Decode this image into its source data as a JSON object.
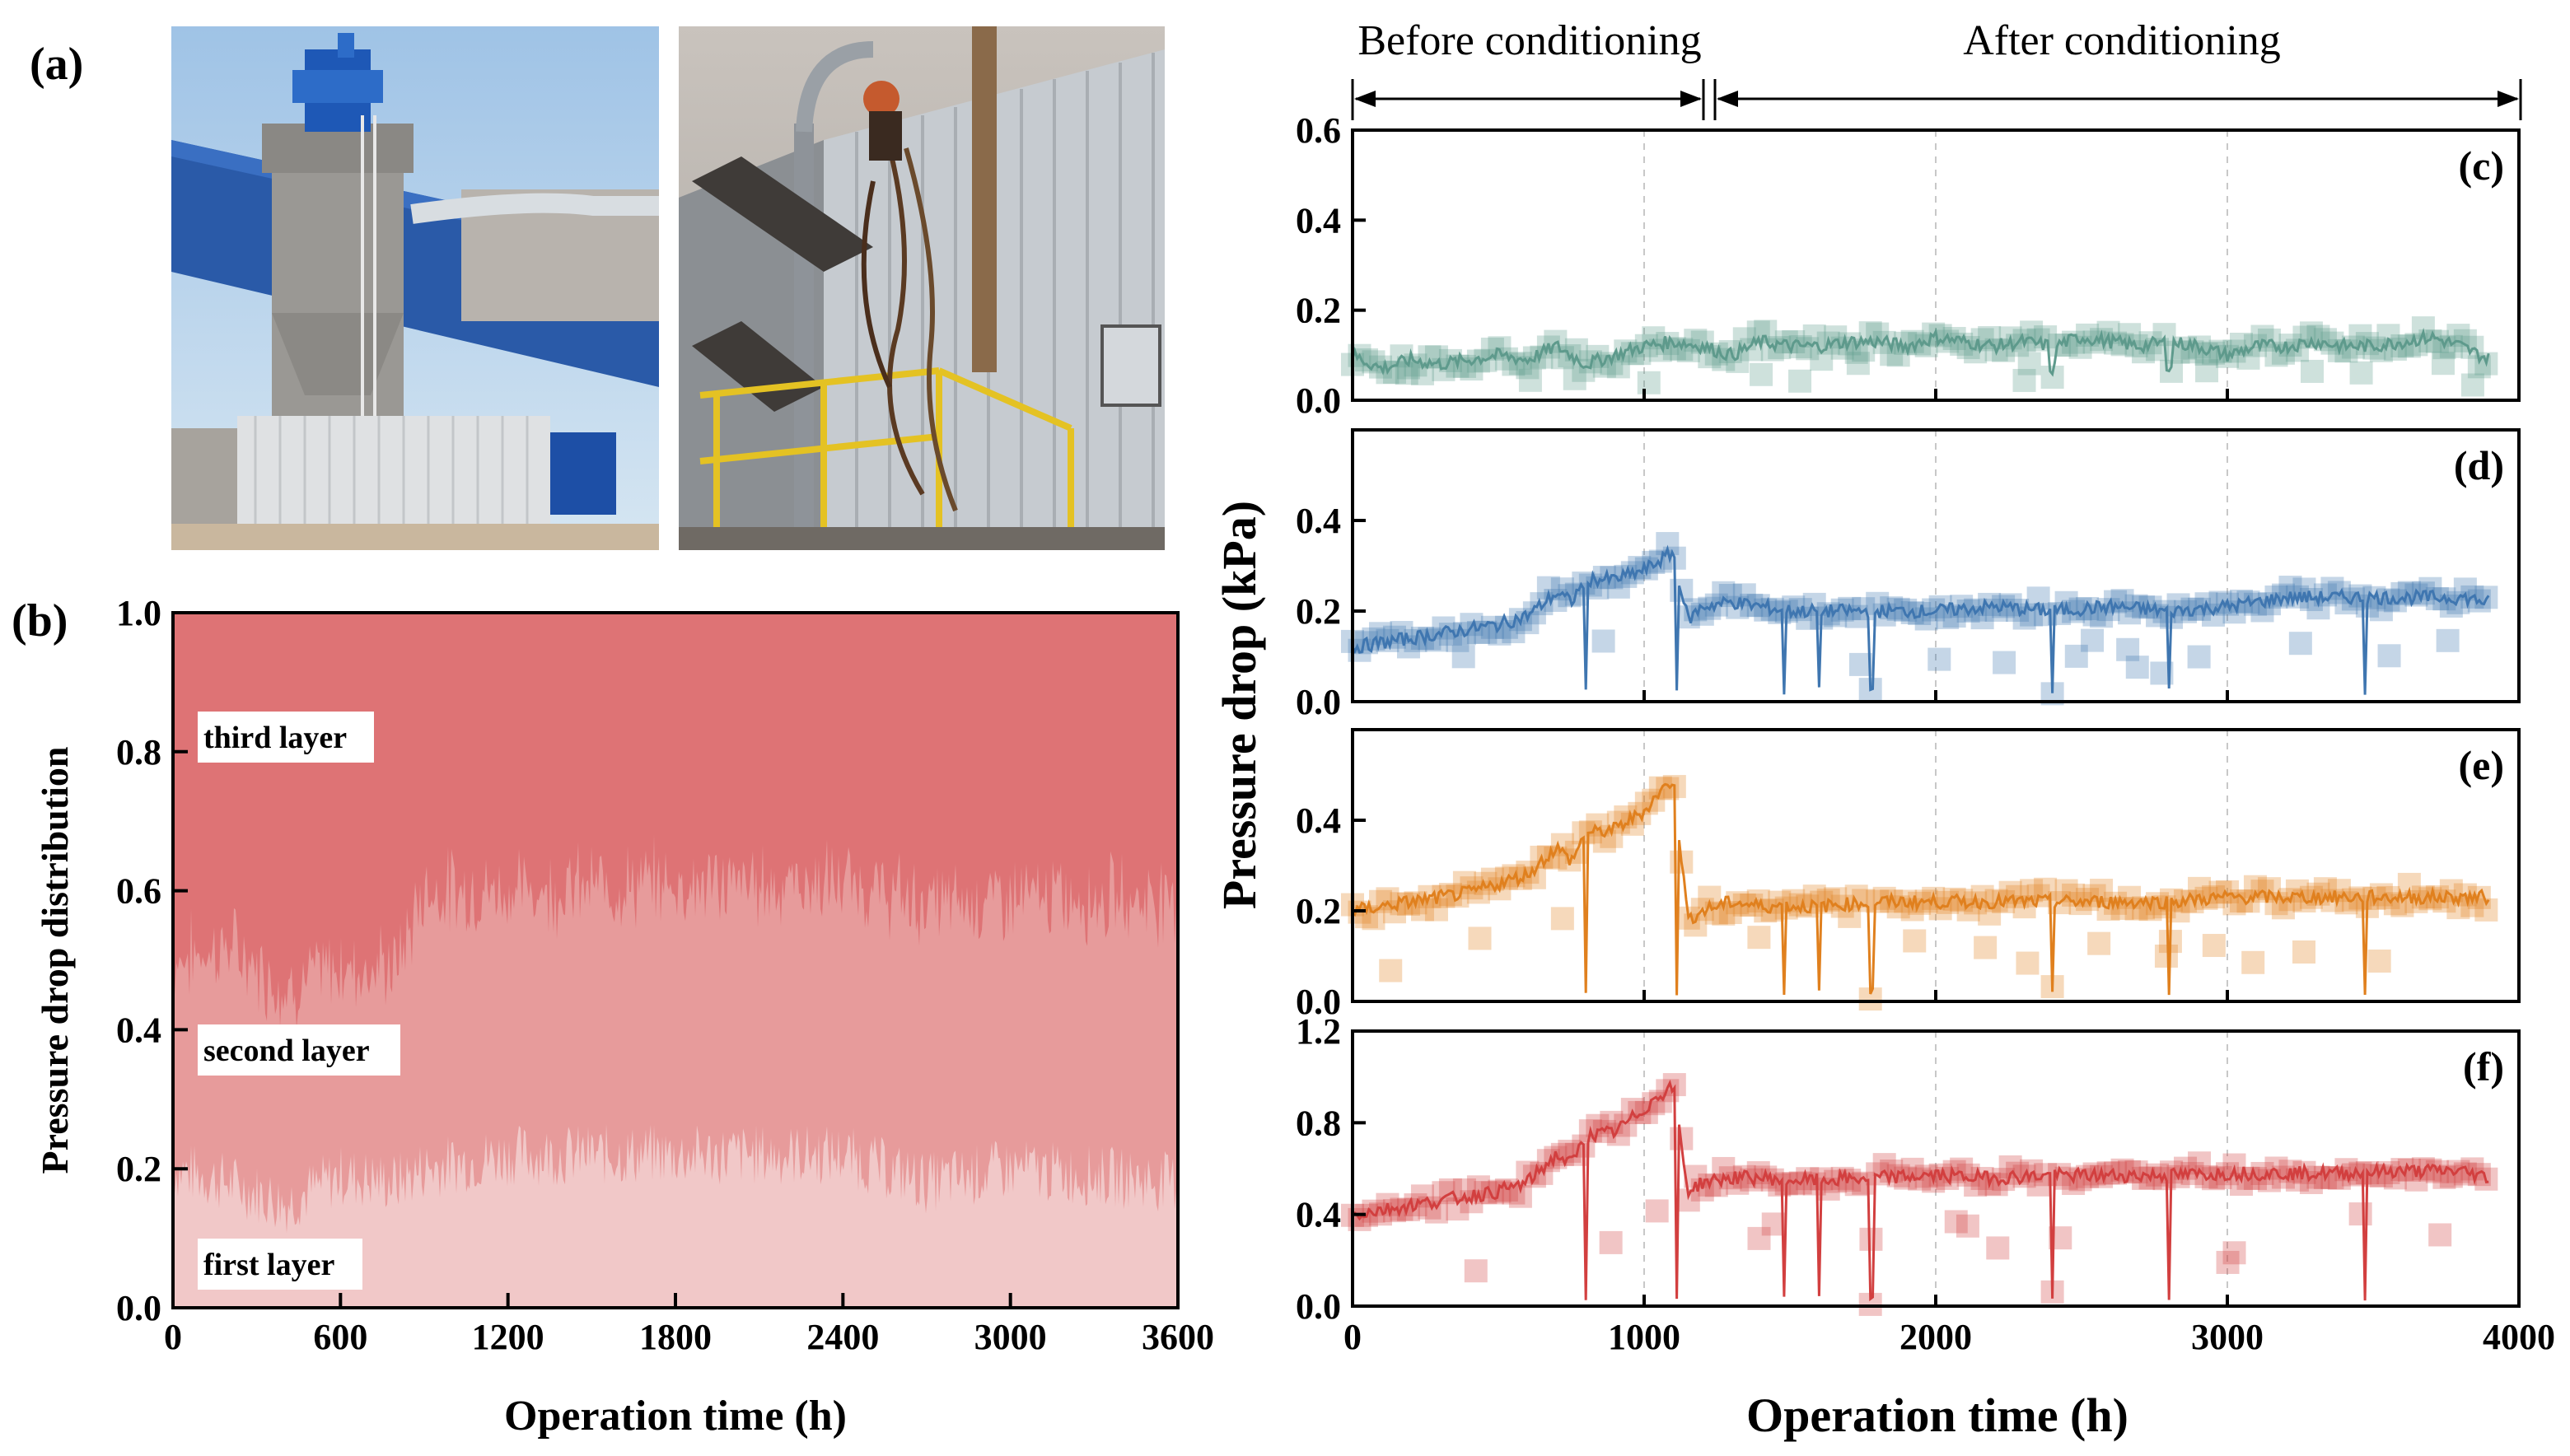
{
  "panels": {
    "a": "(a)",
    "b": "(b)",
    "c": "(c)",
    "d": "(d)",
    "e": "(e)",
    "f": "(f)"
  },
  "conditioning": {
    "before": "Before conditioning",
    "after": "After conditioning"
  },
  "photos": [
    {
      "name": "reactor-tower-photo",
      "description_icon": "industrial-photo-icon"
    },
    {
      "name": "piping-scaffold-photo",
      "description_icon": "industrial-photo-icon"
    }
  ],
  "chart_data": [
    {
      "id": "b",
      "type": "area",
      "xlabel": "Operation time (h)",
      "ylabel": "Pressure drop distribution",
      "xlim": [
        0,
        3600
      ],
      "ylim": [
        0,
        1.0
      ],
      "xticks": [
        "0",
        "600",
        "1200",
        "1800",
        "2400",
        "3000",
        "3600"
      ],
      "yticks": [
        "0.0",
        "0.2",
        "0.4",
        "0.6",
        "0.8",
        "1.0"
      ],
      "layer_labels": [
        "third layer",
        "second layer",
        "first layer"
      ],
      "colors": [
        "#de7375",
        "#e79b9b",
        "#f1c8c8"
      ],
      "series": [
        {
          "name": "first layer",
          "x": [
            0,
            200,
            400,
            600,
            800,
            900,
            1200,
            1800,
            2400,
            2700,
            3000,
            3600
          ],
          "values": [
            0.2,
            0.18,
            0.15,
            0.19,
            0.18,
            0.2,
            0.22,
            0.22,
            0.22,
            0.18,
            0.2,
            0.18
          ]
        },
        {
          "name": "second layer",
          "x": [
            0,
            200,
            400,
            600,
            800,
            900,
            1200,
            1800,
            2400,
            2700,
            3000,
            3600
          ],
          "values": [
            0.3,
            0.34,
            0.31,
            0.3,
            0.31,
            0.4,
            0.38,
            0.39,
            0.39,
            0.4,
            0.39,
            0.41
          ]
        },
        {
          "name": "third layer",
          "x": [
            0,
            3600
          ],
          "values": [
            1.0,
            1.0
          ]
        }
      ]
    },
    {
      "id": "c",
      "type": "scatter",
      "xlim": [
        0,
        4000
      ],
      "ylim": [
        0,
        0.6
      ],
      "yticks": [
        "0.0",
        "0.2",
        "0.4",
        "0.6"
      ],
      "color": "#5e9a8c",
      "x": [
        0,
        100,
        200,
        300,
        400,
        500,
        600,
        700,
        800,
        900,
        1000,
        1100,
        1200,
        1300,
        1400,
        1500,
        1600,
        1700,
        1800,
        1900,
        2000,
        2100,
        2200,
        2300,
        2400,
        2500,
        2600,
        2700,
        2800,
        2900,
        3000,
        3100,
        3200,
        3300,
        3400,
        3500,
        3600,
        3700,
        3800,
        3900
      ],
      "values": [
        0.1,
        0.07,
        0.09,
        0.08,
        0.09,
        0.1,
        0.09,
        0.12,
        0.08,
        0.1,
        0.12,
        0.13,
        0.12,
        0.1,
        0.13,
        0.12,
        0.12,
        0.13,
        0.13,
        0.12,
        0.14,
        0.13,
        0.12,
        0.13,
        0.12,
        0.14,
        0.13,
        0.12,
        0.13,
        0.12,
        0.1,
        0.12,
        0.12,
        0.13,
        0.12,
        0.12,
        0.13,
        0.14,
        0.12,
        0.09
      ]
    },
    {
      "id": "d",
      "type": "scatter",
      "xlim": [
        0,
        4000
      ],
      "ylim": [
        0,
        0.6
      ],
      "yticks": [
        "0.0",
        "0.2",
        "0.4"
      ],
      "color": "#3f76b0",
      "x": [
        0,
        100,
        200,
        300,
        400,
        500,
        600,
        700,
        750,
        800,
        900,
        1000,
        1050,
        1100,
        1150,
        1200,
        1300,
        1400,
        1500,
        1600,
        1800,
        2000,
        2200,
        2400,
        2600,
        2800,
        3000,
        3200,
        3400,
        3600,
        3800,
        3900
      ],
      "values": [
        0.12,
        0.13,
        0.14,
        0.15,
        0.16,
        0.17,
        0.19,
        0.24,
        0.22,
        0.27,
        0.27,
        0.29,
        0.31,
        0.33,
        0.18,
        0.21,
        0.22,
        0.21,
        0.2,
        0.2,
        0.2,
        0.2,
        0.21,
        0.2,
        0.21,
        0.2,
        0.21,
        0.23,
        0.23,
        0.23,
        0.23,
        0.22
      ]
    },
    {
      "id": "e",
      "type": "scatter",
      "xlim": [
        0,
        4000
      ],
      "ylim": [
        0,
        0.6
      ],
      "yticks": [
        "0.0",
        "0.2",
        "0.4"
      ],
      "color": "#e0801e",
      "x": [
        0,
        100,
        200,
        300,
        400,
        500,
        600,
        700,
        750,
        800,
        900,
        1000,
        1050,
        1100,
        1150,
        1200,
        1300,
        1400,
        1500,
        1600,
        1800,
        2000,
        2200,
        2400,
        2600,
        2800,
        3000,
        3200,
        3400,
        3600,
        3800,
        3900
      ],
      "values": [
        0.2,
        0.21,
        0.22,
        0.23,
        0.24,
        0.26,
        0.28,
        0.34,
        0.31,
        0.37,
        0.38,
        0.42,
        0.46,
        0.49,
        0.18,
        0.2,
        0.22,
        0.21,
        0.21,
        0.21,
        0.22,
        0.22,
        0.22,
        0.22,
        0.22,
        0.22,
        0.23,
        0.23,
        0.23,
        0.23,
        0.23,
        0.23
      ]
    },
    {
      "id": "f",
      "type": "scatter",
      "xlim": [
        0,
        4000
      ],
      "ylim": [
        0,
        1.2
      ],
      "yticks": [
        "0.0",
        "0.4",
        "0.8",
        "1.2"
      ],
      "color": "#d23f3f",
      "x": [
        0,
        100,
        200,
        300,
        400,
        500,
        600,
        700,
        750,
        800,
        900,
        1000,
        1050,
        1100,
        1150,
        1200,
        1300,
        1400,
        1500,
        1600,
        1800,
        2000,
        2200,
        2400,
        2600,
        2800,
        3000,
        3200,
        3400,
        3600,
        3800,
        3900
      ],
      "values": [
        0.4,
        0.42,
        0.44,
        0.46,
        0.48,
        0.5,
        0.54,
        0.66,
        0.62,
        0.74,
        0.76,
        0.86,
        0.92,
        0.96,
        0.5,
        0.54,
        0.56,
        0.56,
        0.55,
        0.55,
        0.56,
        0.57,
        0.56,
        0.57,
        0.57,
        0.57,
        0.58,
        0.58,
        0.58,
        0.59,
        0.59,
        0.56
      ]
    }
  ],
  "shared_axes": {
    "xticks": [
      "0",
      "1000",
      "2000",
      "3000",
      "4000"
    ],
    "xlabel": "Operation time (h)",
    "ylabel": "Pressure drop (kPa)"
  }
}
